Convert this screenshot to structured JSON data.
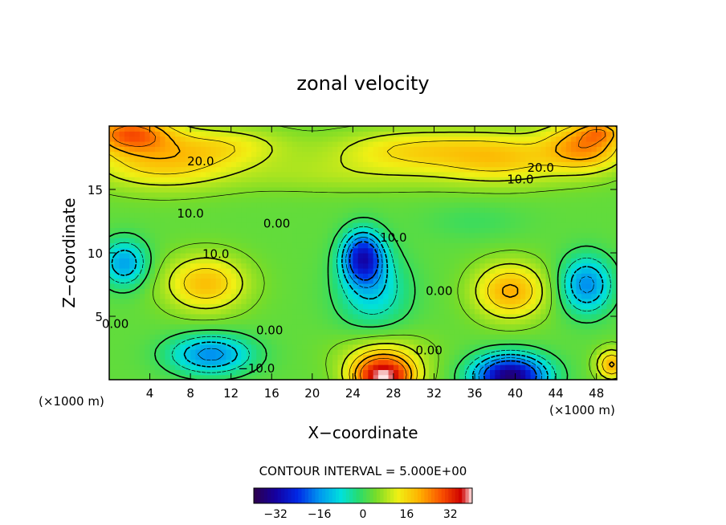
{
  "chart_data": {
    "type": "heatmap",
    "title": "zonal velocity",
    "xlabel": "X−coordinate",
    "ylabel": "Z−coordinate",
    "x_unit_left": "(×1000 m)",
    "x_unit_right": "(×1000 m)",
    "xlim": [
      0,
      50
    ],
    "ylim": [
      0,
      20
    ],
    "x_ticks": [
      4,
      8,
      12,
      16,
      20,
      24,
      28,
      32,
      36,
      40,
      44,
      48
    ],
    "y_ticks": [
      5,
      10,
      15
    ],
    "contour_interval_text": "CONTOUR INTERVAL = 5.000E+00",
    "colorbar": {
      "range": [
        -40,
        40
      ],
      "ticks": [
        -32,
        -16,
        0,
        16,
        32
      ],
      "tick_labels": [
        "−32",
        "−16",
        "0",
        "16",
        "32"
      ]
    },
    "contour_labels": [
      {
        "text": "20.0",
        "x": 9.0,
        "y": 17.2
      },
      {
        "text": "20.0",
        "x": 42.5,
        "y": 16.7
      },
      {
        "text": "10.0",
        "x": 40.5,
        "y": 15.8
      },
      {
        "text": "10.0",
        "x": 8.0,
        "y": 13.1
      },
      {
        "text": "0.00",
        "x": 16.5,
        "y": 12.3
      },
      {
        "text": "10.0",
        "x": 28.0,
        "y": 11.2
      },
      {
        "text": "10.0",
        "x": 10.5,
        "y": 9.9
      },
      {
        "text": "0.00",
        "x": 32.5,
        "y": 7.0
      },
      {
        "text": "0.00",
        "x": 0.6,
        "y": 4.4
      },
      {
        "text": "0.00",
        "x": 15.8,
        "y": 3.9
      },
      {
        "text": "0.00",
        "x": 31.5,
        "y": 2.3
      },
      {
        "text": "−10.0",
        "x": 14.5,
        "y": 0.9
      }
    ],
    "field_features": [
      {
        "x": 2,
        "y": 19.5,
        "sx": 4,
        "sy": 1.4,
        "amp": 22
      },
      {
        "x": 5,
        "y": 17.3,
        "sx": 7,
        "sy": 2.2,
        "amp": 14
      },
      {
        "x": 12,
        "y": 18.5,
        "sx": 6,
        "sy": 1.5,
        "amp": 8
      },
      {
        "x": 30,
        "y": 18.2,
        "sx": 8,
        "sy": 1.6,
        "amp": 12
      },
      {
        "x": 39,
        "y": 17.5,
        "sx": 6,
        "sy": 2.0,
        "amp": 12
      },
      {
        "x": 47,
        "y": 18.5,
        "sx": 4,
        "sy": 2.0,
        "amp": 20
      },
      {
        "x": 48.5,
        "y": 19.6,
        "sx": 2,
        "sy": 0.8,
        "amp": 10
      },
      {
        "x": 24,
        "y": 16.2,
        "sx": 14,
        "sy": 1.5,
        "amp": 5
      },
      {
        "x": 1.5,
        "y": 9.2,
        "sx": 2.2,
        "sy": 1.8,
        "amp": -18
      },
      {
        "x": 25,
        "y": 9.7,
        "sx": 2.0,
        "sy": 2.0,
        "amp": -30
      },
      {
        "x": 26,
        "y": 7.0,
        "sx": 3.5,
        "sy": 3.0,
        "amp": -12
      },
      {
        "x": 9.5,
        "y": 7.6,
        "sx": 4.0,
        "sy": 2.2,
        "amp": 16
      },
      {
        "x": 39.5,
        "y": 7.0,
        "sx": 3.5,
        "sy": 2.2,
        "amp": 18
      },
      {
        "x": 47,
        "y": 7.5,
        "sx": 2.5,
        "sy": 2.2,
        "amp": -20
      },
      {
        "x": 10,
        "y": 2.0,
        "sx": 4.0,
        "sy": 1.5,
        "amp": -20
      },
      {
        "x": 27,
        "y": 0.2,
        "sx": 3.0,
        "sy": 1.6,
        "amp": 35
      },
      {
        "x": 27,
        "y": 2.0,
        "sx": 4.5,
        "sy": 1.8,
        "amp": 8
      },
      {
        "x": 39.5,
        "y": 0.3,
        "sx": 3.5,
        "sy": 1.6,
        "amp": -40
      },
      {
        "x": 49.5,
        "y": 1.2,
        "sx": 1.5,
        "sy": 1.2,
        "amp": 18
      },
      {
        "x": 36,
        "y": 12.5,
        "sx": 5,
        "sy": 1.5,
        "amp": -3
      }
    ],
    "field_base": 3
  }
}
